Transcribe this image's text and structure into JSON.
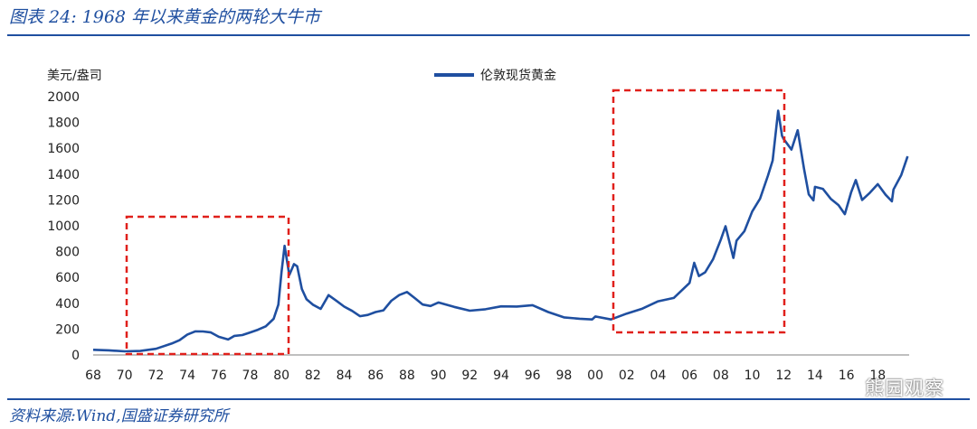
{
  "header": {
    "title": "图表 24: 1968 年以来黄金的两轮大牛市"
  },
  "footer": {
    "source": "资料来源:Wind,国盛证券研究所",
    "watermark": "熊园观察"
  },
  "chart_data": {
    "type": "line",
    "ylabel": "美元/盎司",
    "ylim": [
      0,
      2000
    ],
    "y_ticks": [
      "0",
      "200",
      "400",
      "600",
      "800",
      "1000",
      "1200",
      "1400",
      "1600",
      "1800",
      "2000"
    ],
    "x_ticks": [
      "68",
      "70",
      "72",
      "74",
      "76",
      "78",
      "80",
      "82",
      "84",
      "86",
      "88",
      "90",
      "92",
      "94",
      "96",
      "98",
      "00",
      "02",
      "04",
      "06",
      "08",
      "10",
      "12",
      "14",
      "16",
      "18"
    ],
    "xlim": [
      1968,
      2020
    ],
    "legend": "top-center",
    "series": [
      {
        "name": "伦敦现货黄金",
        "color": "#1f4fa0",
        "x": [
          1968.0,
          1969.0,
          1970.0,
          1971.0,
          1972.0,
          1973.0,
          1973.5,
          1974.0,
          1974.5,
          1975.0,
          1975.5,
          1976.0,
          1976.6,
          1977.0,
          1977.5,
          1978.0,
          1978.5,
          1979.0,
          1979.5,
          1979.8,
          1980.0,
          1980.2,
          1980.5,
          1980.8,
          1981.0,
          1981.3,
          1981.6,
          1982.0,
          1982.5,
          1983.0,
          1983.5,
          1984.0,
          1984.5,
          1985.0,
          1985.5,
          1986.0,
          1986.5,
          1987.0,
          1987.5,
          1988.0,
          1988.5,
          1989.0,
          1989.5,
          1990.0,
          1991.0,
          1992.0,
          1993.0,
          1994.0,
          1995.0,
          1996.0,
          1997.0,
          1998.0,
          1999.0,
          1999.8,
          2000.0,
          2001.0,
          2002.0,
          2003.0,
          2004.0,
          2005.0,
          2006.0,
          2006.3,
          2006.6,
          2007.0,
          2007.5,
          2008.0,
          2008.3,
          2008.8,
          2009.0,
          2009.5,
          2010.0,
          2010.5,
          2011.0,
          2011.3,
          2011.65,
          2011.9,
          2012.0,
          2012.5,
          2012.9,
          2013.3,
          2013.6,
          2013.9,
          2014.0,
          2014.5,
          2015.0,
          2015.5,
          2015.9,
          2016.3,
          2016.6,
          2017.0,
          2017.5,
          2018.0,
          2018.5,
          2018.9,
          2019.0,
          2019.5,
          2019.9
        ],
        "values": [
          40,
          40,
          36,
          41,
          58,
          97,
          120,
          160,
          180,
          175,
          165,
          130,
          110,
          140,
          150,
          175,
          200,
          230,
          290,
          400,
          650,
          850,
          620,
          700,
          680,
          500,
          420,
          380,
          350,
          460,
          420,
          380,
          350,
          310,
          320,
          340,
          350,
          420,
          460,
          480,
          430,
          380,
          370,
          400,
          370,
          345,
          360,
          385,
          385,
          395,
          340,
          295,
          280,
          270,
          290,
          265,
          310,
          350,
          410,
          440,
          560,
          720,
          620,
          650,
          750,
          900,
          1000,
          750,
          880,
          950,
          1100,
          1200,
          1380,
          1500,
          1890,
          1700,
          1680,
          1600,
          1750,
          1450,
          1250,
          1200,
          1300,
          1280,
          1200,
          1150,
          1080,
          1250,
          1350,
          1200,
          1260,
          1330,
          1250,
          1200,
          1290,
          1400,
          1540
        ]
      }
    ]
  }
}
